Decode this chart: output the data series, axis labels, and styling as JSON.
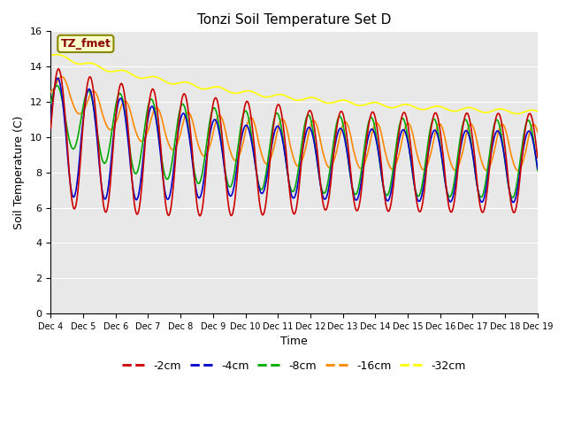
{
  "title": "Tonzi Soil Temperature Set D",
  "xlabel": "Time",
  "ylabel": "Soil Temperature (C)",
  "ylim": [
    0,
    16
  ],
  "background_color": "#e8e8e8",
  "annotation_text": "TZ_fmet",
  "annotation_color": "#8b0000",
  "annotation_bg": "#ffffcc",
  "legend_labels": [
    "-2cm",
    "-4cm",
    "-8cm",
    "-16cm",
    "-32cm"
  ],
  "line_colors": [
    "#cc0000",
    "#0000cc",
    "#00aa00",
    "#ff8800",
    "#ffff00"
  ],
  "xtick_labels": [
    "Dec 4",
    "Dec 5",
    "Dec 6",
    "Dec 7",
    "Dec 8",
    "Dec 9",
    "Dec 10",
    "Dec 11",
    "Dec 12",
    "Dec 13",
    "Dec 14",
    "Dec 15",
    "Dec 16",
    "Dec 17",
    "Dec 18",
    "Dec 19"
  ],
  "ytick_values": [
    0,
    2,
    4,
    6,
    8,
    10,
    12,
    14,
    16
  ]
}
